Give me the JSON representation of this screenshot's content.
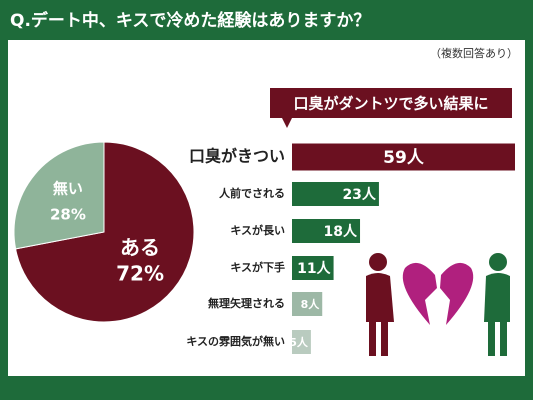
{
  "header": {
    "title": "Q.デート中、キスで冷めた経験はありますか？",
    "subtitle": "（複数回答あり）"
  },
  "chart_data": [
    {
      "type": "pie",
      "categories": [
        "ある",
        "無い"
      ],
      "values": [
        72,
        28
      ],
      "value_labels": [
        "72%",
        "28%"
      ],
      "colors": [
        "#6b1020",
        "#8fb49a"
      ]
    },
    {
      "type": "bar",
      "annotation": "口臭がダントツで多い結果に",
      "categories": [
        "口臭がきつい",
        "人前でされる",
        "キスが長い",
        "キスが下手",
        "無理矢理される",
        "キスの雰囲気が無い"
      ],
      "values": [
        59,
        23,
        18,
        11,
        8,
        5
      ],
      "value_labels": [
        "59人",
        "23人",
        "18人",
        "11人",
        "8人",
        "5人"
      ],
      "colors": [
        "#6b1020",
        "#1e6b3a",
        "#1e6b3a",
        "#1e6b3a",
        "#9db8a6",
        "#b9cbbf"
      ]
    }
  ]
}
